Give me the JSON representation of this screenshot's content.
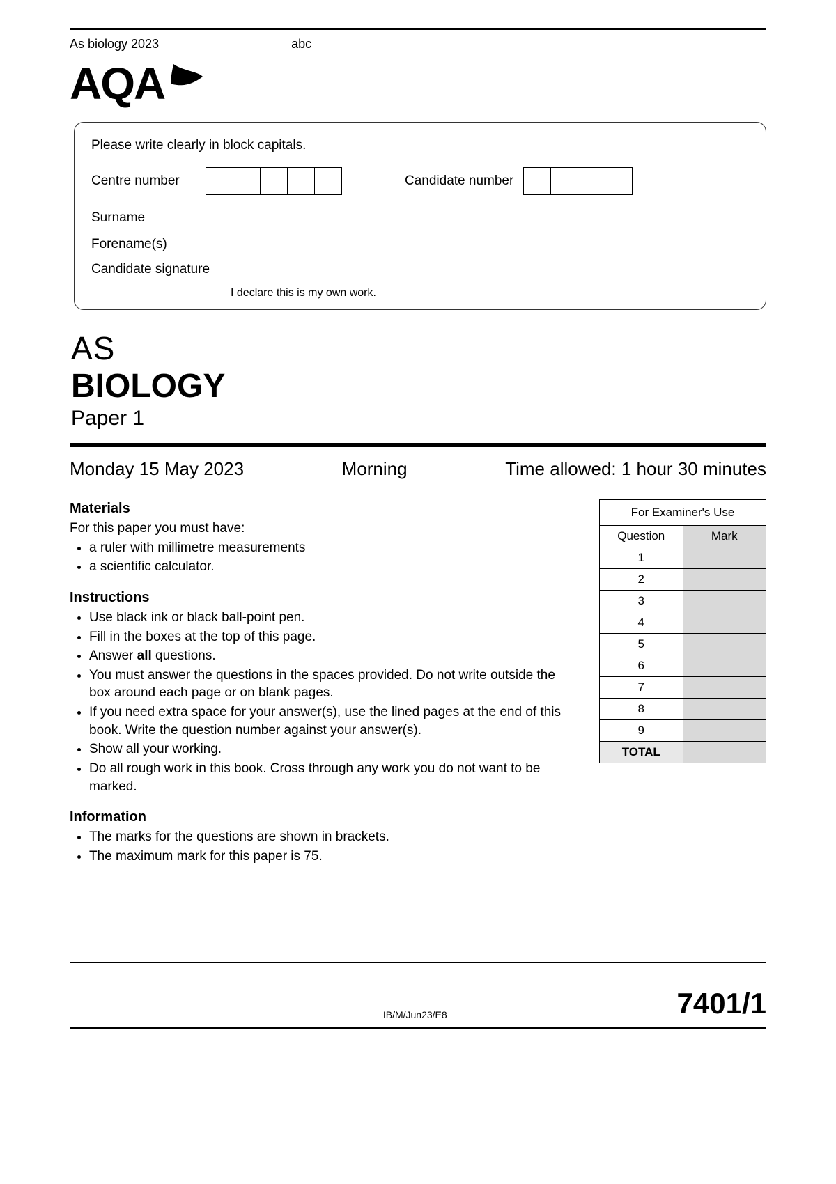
{
  "meta": {
    "top_left": "As biology 2023",
    "top_mid": "abc",
    "logo_text": "AQA"
  },
  "candidate_box": {
    "instruction": "Please write clearly in block capitals.",
    "centre_label": "Centre number",
    "centre_cells": 5,
    "candidate_label": "Candidate number",
    "candidate_cells": 4,
    "surname_label": "Surname",
    "forename_label": "Forename(s)",
    "signature_label": "Candidate signature",
    "declaration": "I declare this is my own work."
  },
  "title": {
    "line1": "AS",
    "line2": "BIOLOGY",
    "line3": "Paper 1"
  },
  "date_row": {
    "date": "Monday 15 May 2023",
    "session": "Morning",
    "time": "Time allowed: 1 hour 30 minutes"
  },
  "materials": {
    "heading": "Materials",
    "lead": "For this paper you must have:",
    "items": [
      "a ruler with millimetre measurements",
      "a scientific calculator."
    ]
  },
  "instructions": {
    "heading": "Instructions",
    "items": [
      "Use black ink or black ball-point pen.",
      "Fill in the boxes at the top of this page.",
      "Answer all questions.",
      "You must answer the questions in the spaces provided.  Do not write outside the box around each page or on blank pages.",
      "If you need extra space for your answer(s), use the lined pages at the end of this book.  Write the question number against your answer(s).",
      "Show all your working.",
      "Do all rough work in this book.  Cross through any work you do not want to be marked."
    ]
  },
  "information": {
    "heading": "Information",
    "items": [
      "The marks for the questions are shown in brackets.",
      "The maximum mark for this paper is 75."
    ]
  },
  "mark_table": {
    "caption": "For Examiner's Use",
    "col1": "Question",
    "col2": "Mark",
    "rows": [
      "1",
      "2",
      "3",
      "4",
      "5",
      "6",
      "7",
      "8",
      "9"
    ],
    "total_label": "TOTAL",
    "mark_col_bg": "#d9d9d9"
  },
  "footer": {
    "ref": "IB/M/Jun23/E8",
    "code": "7401/1"
  }
}
